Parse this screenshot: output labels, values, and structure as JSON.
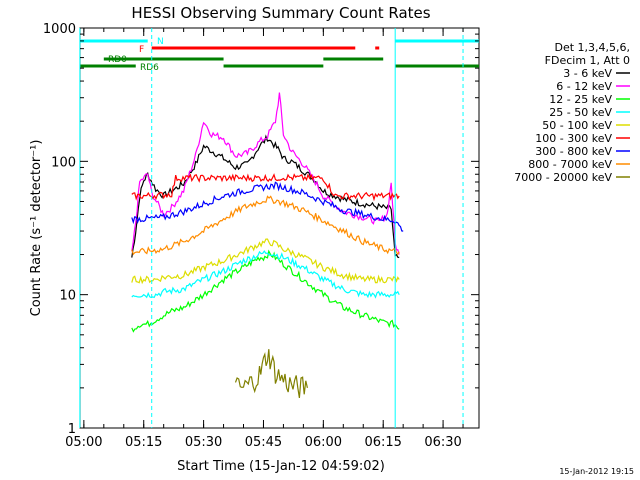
{
  "chart_data": {
    "type": "line",
    "title": "HESSI Observing Summary Count Rates",
    "xlabel": "Start Time (15-Jan-12 04:59:02)",
    "ylabel": "Count Rate (s⁻¹ detector⁻¹)",
    "x_ticks": [
      "05:00",
      "05:15",
      "05:30",
      "05:45",
      "06:00",
      "06:15",
      "06:30"
    ],
    "y_ticks": [
      "1",
      "10",
      "100",
      "1000"
    ],
    "y_scale": "log",
    "ylim": [
      1,
      1000
    ],
    "xlim": [
      "04:59:02",
      "06:39:00"
    ],
    "grid": false,
    "legend_position": "right",
    "legend_header": [
      "Det 1,3,4,5,6,",
      "FDecim 1, Att 0"
    ],
    "series": [
      {
        "name": "3 - 6 keV",
        "color": "#000000",
        "x": [
          "05:12",
          "05:13",
          "05:14",
          "05:15",
          "05:16",
          "05:18",
          "05:20",
          "05:22",
          "05:25",
          "05:28",
          "05:30",
          "05:32",
          "05:35",
          "05:38",
          "05:41",
          "05:44",
          "05:46",
          "05:48",
          "05:49",
          "05:50",
          "05:52",
          "05:55",
          "05:58",
          "06:00",
          "06:05",
          "06:10",
          "06:15",
          "06:17",
          "06:18",
          "06:19"
        ],
        "y": [
          19,
          30,
          55,
          72,
          80,
          62,
          55,
          60,
          68,
          95,
          130,
          120,
          105,
          90,
          95,
          130,
          150,
          130,
          120,
          105,
          100,
          85,
          72,
          60,
          52,
          48,
          45,
          44,
          19,
          19
        ]
      },
      {
        "name": "6 - 12 keV",
        "color": "#ff00ff",
        "x": [
          "05:12",
          "05:13",
          "05:14",
          "05:16",
          "05:17",
          "05:19",
          "05:20",
          "05:22",
          "05:25",
          "05:28",
          "05:30",
          "05:32",
          "05:35",
          "05:38",
          "05:41",
          "05:44",
          "05:46",
          "05:48",
          "05:49",
          "05:50",
          "05:52",
          "05:55",
          "05:58",
          "06:00",
          "06:05",
          "06:10",
          "06:14",
          "06:16",
          "06:17",
          "06:18",
          "06:19"
        ],
        "y": [
          20,
          35,
          70,
          80,
          58,
          45,
          40,
          45,
          60,
          110,
          200,
          160,
          150,
          110,
          115,
          140,
          155,
          200,
          320,
          160,
          120,
          95,
          70,
          55,
          42,
          38,
          35,
          40,
          70,
          24,
          20
        ]
      },
      {
        "name": "12 - 25 keV",
        "color": "#00ff00",
        "x": [
          "05:12",
          "05:14",
          "05:16",
          "05:18",
          "05:20",
          "05:22",
          "05:25",
          "05:30",
          "05:35",
          "05:40",
          "05:44",
          "05:45",
          "05:46",
          "05:47",
          "05:48",
          "05:50",
          "05:55",
          "06:00",
          "06:05",
          "06:10",
          "06:15",
          "06:18",
          "06:19"
        ],
        "y": [
          5.5,
          6,
          6,
          6.5,
          7,
          7.5,
          8,
          10,
          13,
          16,
          19,
          19,
          20,
          20,
          19,
          17,
          13,
          10,
          8,
          7,
          6.2,
          6,
          5.5
        ]
      },
      {
        "name": "25 - 50 keV",
        "color": "#00ffff",
        "x": [
          "05:12",
          "05:15",
          "05:18",
          "05:20",
          "05:25",
          "05:30",
          "05:35",
          "05:40",
          "05:44",
          "05:46",
          "05:48",
          "05:50",
          "05:55",
          "06:00",
          "06:05",
          "06:10",
          "06:15",
          "06:18",
          "06:19"
        ],
        "y": [
          10,
          10,
          10,
          10.5,
          11,
          13,
          15,
          18,
          20,
          21,
          20,
          19,
          16,
          13,
          11,
          10,
          10,
          10,
          10
        ]
      },
      {
        "name": "50 - 100 keV",
        "color": "#dddd00",
        "x": [
          "05:12",
          "05:15",
          "05:18",
          "05:20",
          "05:25",
          "05:30",
          "05:35",
          "05:40",
          "05:44",
          "05:46",
          "05:48",
          "05:50",
          "05:55",
          "06:00",
          "06:05",
          "06:10",
          "06:15",
          "06:18",
          "06:19"
        ],
        "y": [
          13,
          13,
          13,
          13.5,
          14,
          16,
          18,
          21,
          24,
          25,
          24,
          22,
          19,
          16,
          14,
          13,
          13,
          13,
          13
        ]
      },
      {
        "name": "100 - 300 keV",
        "color": "#ff0000",
        "x": [
          "05:12",
          "05:15",
          "05:20",
          "05:22",
          "05:23",
          "05:30",
          "05:35",
          "05:40",
          "05:44",
          "05:48",
          "05:50",
          "05:55",
          "06:00",
          "06:03",
          "06:05",
          "06:10",
          "06:15",
          "06:18",
          "06:19"
        ],
        "y": [
          55,
          55,
          56,
          57,
          75,
          75,
          75,
          75,
          75,
          75,
          76,
          75,
          75,
          55,
          55,
          55,
          55,
          55,
          55
        ]
      },
      {
        "name": "300 - 800 keV",
        "color": "#0000ff",
        "x": [
          "05:12",
          "05:15",
          "05:20",
          "05:25",
          "05:30",
          "05:35",
          "05:40",
          "05:45",
          "05:48",
          "05:50",
          "05:55",
          "06:00",
          "06:05",
          "06:10",
          "06:15",
          "06:18",
          "06:19",
          "06:20"
        ],
        "y": [
          37,
          37,
          38,
          42,
          48,
          55,
          60,
          64,
          66,
          64,
          58,
          50,
          43,
          40,
          37,
          36,
          33,
          30
        ]
      },
      {
        "name": "800 - 7000 keV",
        "color": "#ff8c00",
        "x": [
          "05:12",
          "05:15",
          "05:20",
          "05:25",
          "05:30",
          "05:35",
          "05:40",
          "05:44",
          "05:46",
          "05:48",
          "05:50",
          "05:55",
          "06:00",
          "06:05",
          "06:10",
          "06:15",
          "06:18",
          "06:19"
        ],
        "y": [
          21,
          21,
          22,
          25,
          30,
          37,
          45,
          50,
          52,
          51,
          49,
          43,
          36,
          30,
          25,
          22,
          21,
          21
        ]
      },
      {
        "name": "7000 - 20000 keV",
        "color": "#808000",
        "x": [
          "05:38",
          "05:40",
          "05:42",
          "05:44",
          "05:45",
          "05:46",
          "05:47",
          "05:48",
          "05:50",
          "05:52",
          "05:54",
          "05:56"
        ],
        "y": [
          2,
          2,
          2.2,
          2.5,
          3,
          3.6,
          3.2,
          2.6,
          2.3,
          2.1,
          2,
          2
        ]
      }
    ],
    "flags": [
      {
        "label": "N",
        "color": "#00ffff",
        "ranges": [
          [
            "04:59",
            "05:16"
          ],
          [
            "06:18",
            "06:39"
          ]
        ]
      },
      {
        "label": "F",
        "color": "#ff0000",
        "ranges": [
          [
            "05:17",
            "06:08"
          ],
          [
            "06:13",
            "06:14"
          ]
        ]
      },
      {
        "label": "RD0",
        "color": "#008000",
        "ranges": [
          [
            "05:05",
            "05:35"
          ],
          [
            "06:00",
            "06:15"
          ]
        ]
      },
      {
        "label": "RD6",
        "color": "#008000",
        "ranges": [
          [
            "04:59",
            "05:13"
          ],
          [
            "05:35",
            "06:00"
          ],
          [
            "06:18",
            "06:39"
          ]
        ]
      }
    ],
    "vlines": [
      {
        "x": "05:17",
        "color": "#00ffff",
        "style": "dashed"
      },
      {
        "x": "06:18",
        "color": "#00ffff",
        "style": "solid"
      },
      {
        "x": "06:35",
        "color": "#00ffff",
        "style": "dashed"
      },
      {
        "x": "04:59",
        "color": "#00ffff",
        "style": "solid"
      }
    ]
  },
  "footer": {
    "stamp": "15-Jan-2012 19:15"
  }
}
